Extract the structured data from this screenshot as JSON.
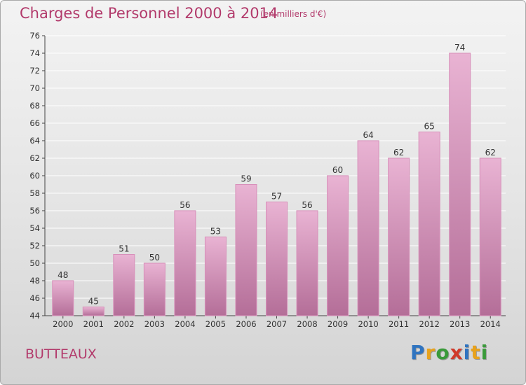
{
  "header": {
    "title": "Charges de Personnel 2000 à 2014",
    "subtitle": "(en milliers d'€)"
  },
  "commune": "BUTTEAUX",
  "logo": {
    "letters": [
      "P",
      "r",
      "o",
      "x",
      "i",
      "t",
      "i"
    ],
    "colors": [
      "#2f74c0",
      "#e8a21c",
      "#3a9a3a",
      "#d03a2a",
      "#2f74c0",
      "#e8a21c",
      "#3a9a3a"
    ]
  },
  "colors": {
    "bar_top": "#e9b3d3",
    "bar_bottom": "#b46e98",
    "bar_stroke": "#d890ba",
    "grid": "#ffffff",
    "title": "#b23a6b"
  },
  "chart_data": {
    "type": "bar",
    "title": "Charges de Personnel 2000 à 2014",
    "subtitle": "(en milliers d'€)",
    "categories": [
      "2000",
      "2001",
      "2002",
      "2003",
      "2004",
      "2005",
      "2006",
      "2007",
      "2008",
      "2009",
      "2010",
      "2011",
      "2012",
      "2013",
      "2014"
    ],
    "values": [
      48,
      45,
      51,
      50,
      56,
      53,
      59,
      57,
      56,
      60,
      64,
      62,
      65,
      74,
      62
    ],
    "ylim": [
      44,
      76
    ],
    "yticks": [
      44,
      46,
      48,
      50,
      52,
      54,
      56,
      58,
      60,
      62,
      64,
      66,
      68,
      70,
      72,
      74,
      76
    ],
    "grid": true,
    "data_labels": true
  }
}
